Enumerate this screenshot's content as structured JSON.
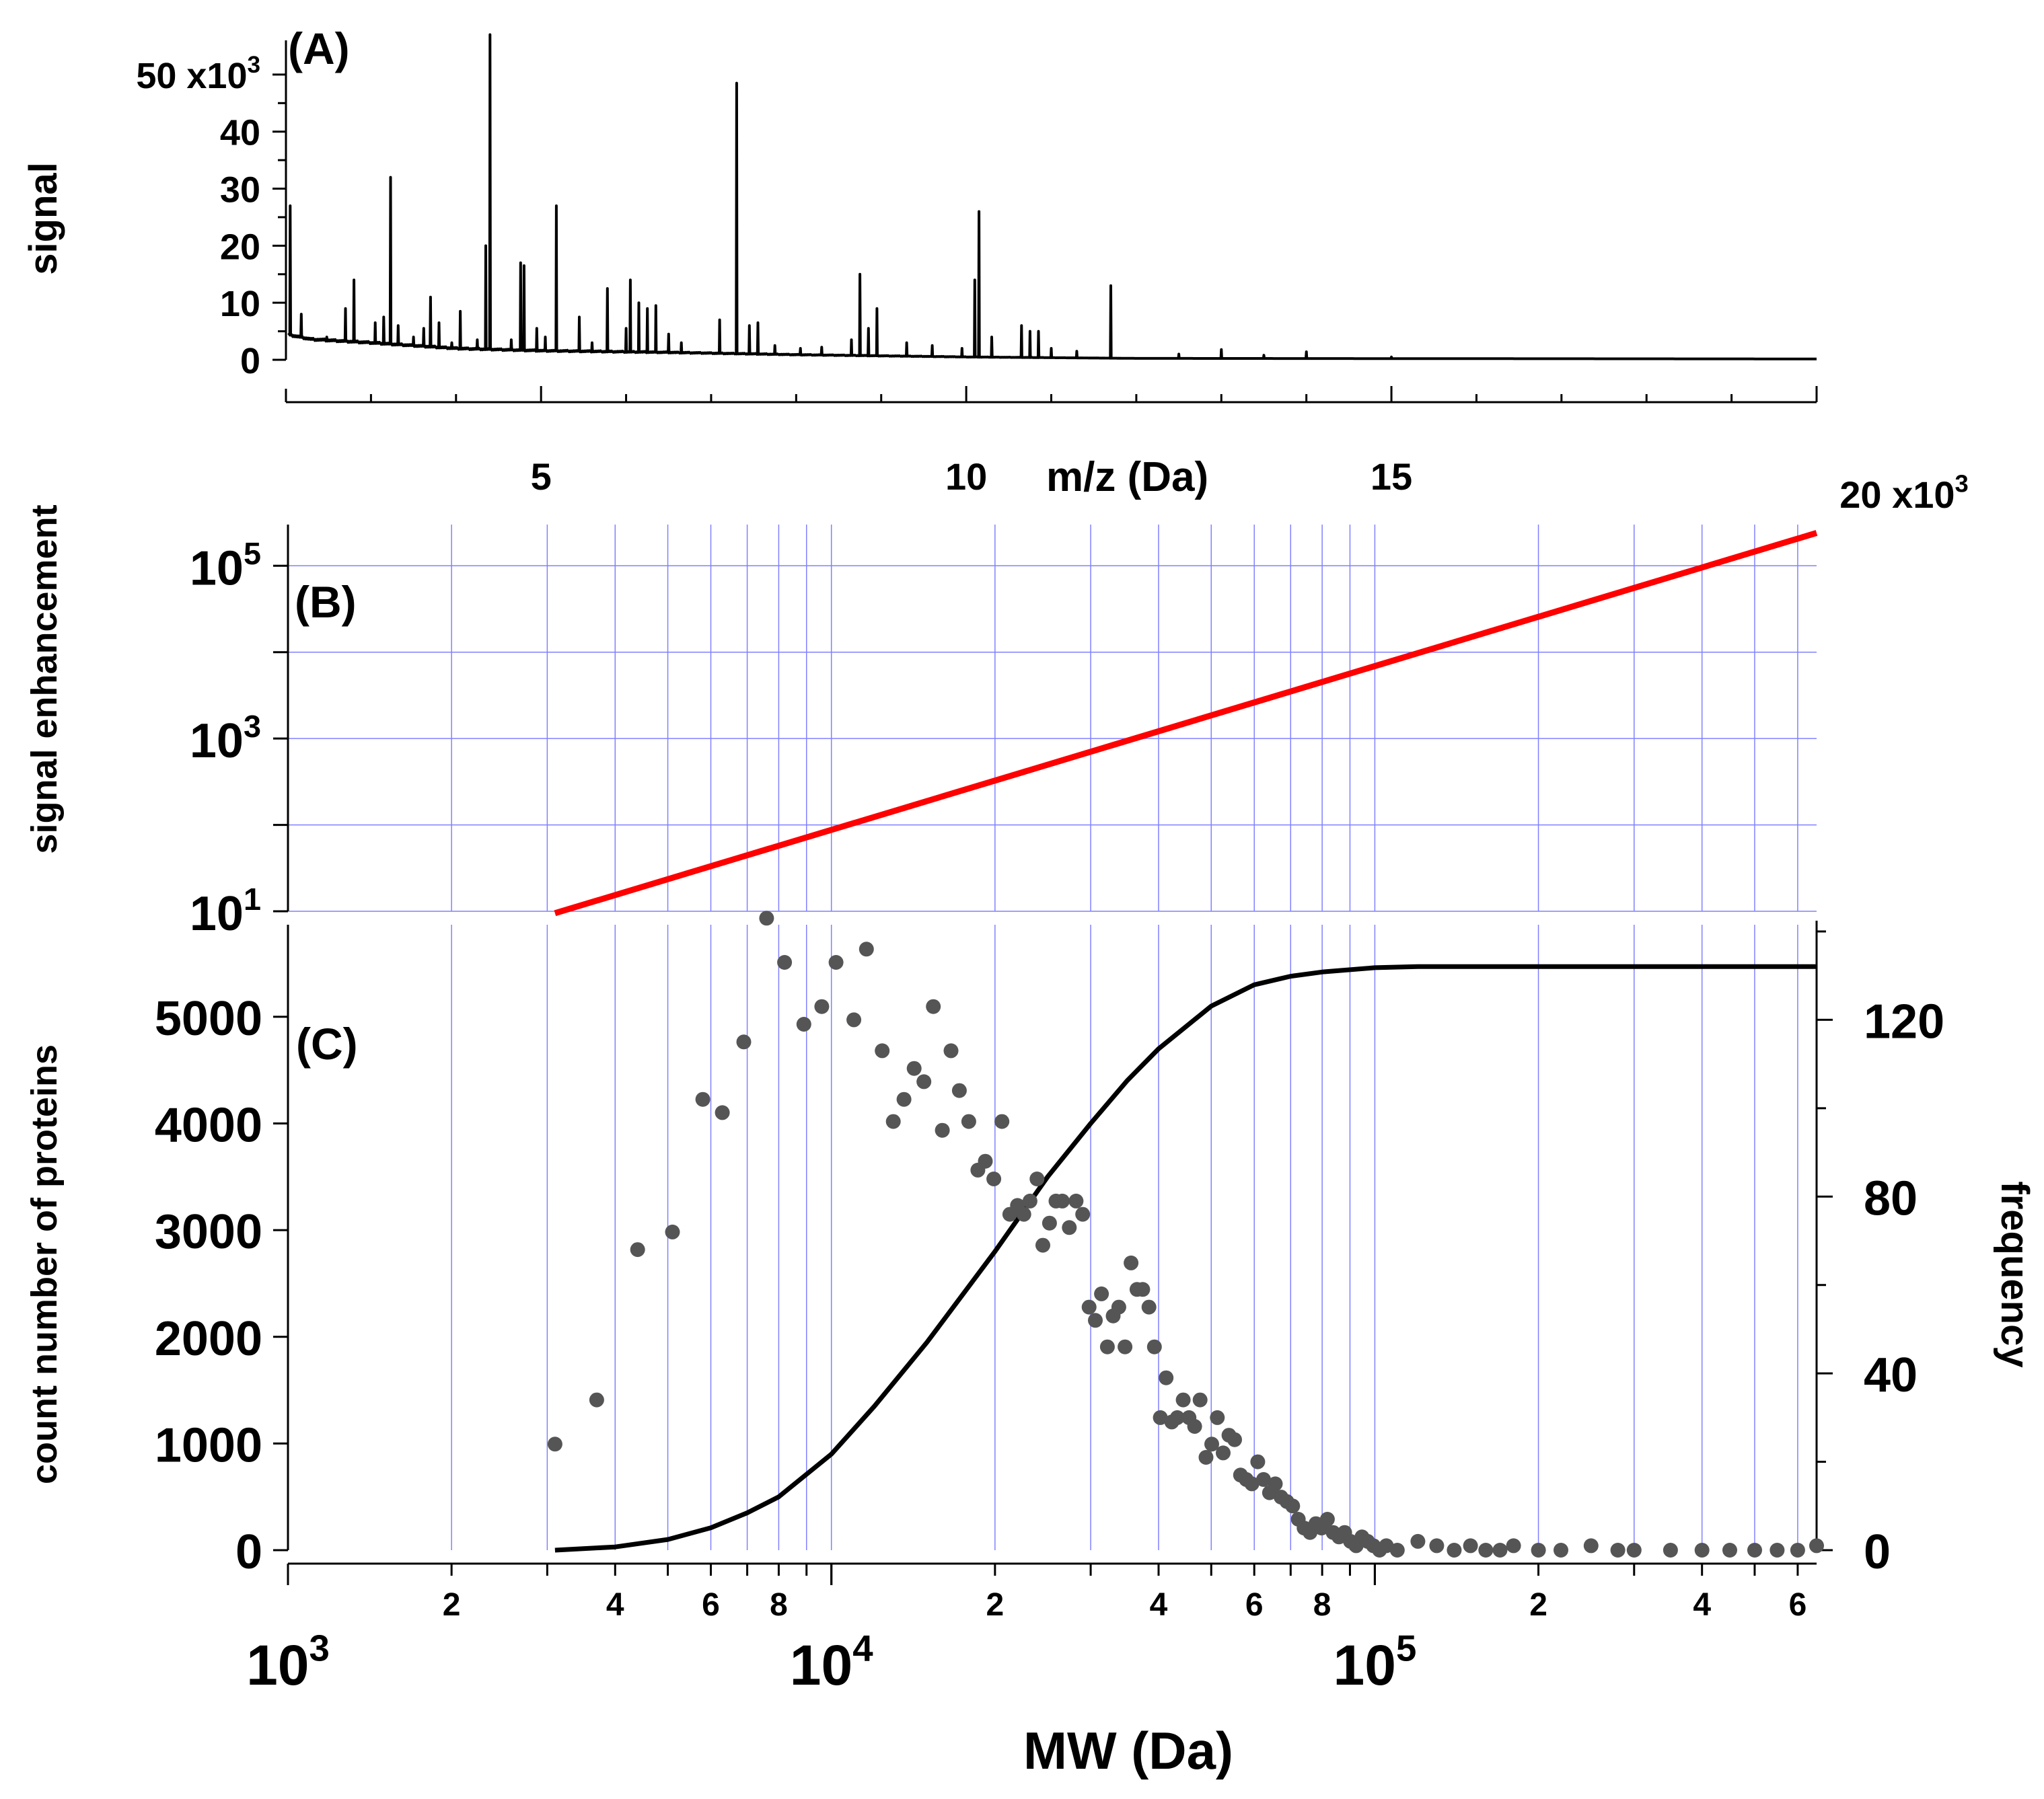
{
  "chart_data": [
    {
      "id": "A",
      "type": "line",
      "panel_label": "(A)",
      "xlabel": "m/z (Da)",
      "ylabel": "signal",
      "xlim": [
        2000,
        20000
      ],
      "ylim": [
        0,
        56000
      ],
      "x_ticks": [
        5000,
        10000,
        15000,
        20000
      ],
      "x_tick_labels": [
        "5",
        "10",
        "15",
        "20 x10"
      ],
      "x_tick_exp": [
        "",
        "",
        "",
        "3"
      ],
      "y_ticks": [
        0,
        10000,
        20000,
        30000,
        40000,
        50000
      ],
      "y_tick_labels": [
        "0",
        "10",
        "20",
        "30",
        "40",
        "50 x10"
      ],
      "y_tick_exp": [
        "",
        "",
        "",
        "",
        "",
        "3"
      ],
      "baseline": [
        [
          2000,
          4500
        ],
        [
          2300,
          3600
        ],
        [
          3000,
          3000
        ],
        [
          4000,
          2000
        ],
        [
          5000,
          1600
        ],
        [
          6500,
          1300
        ],
        [
          8000,
          900
        ],
        [
          10000,
          500
        ],
        [
          12000,
          250
        ],
        [
          20000,
          150
        ]
      ],
      "peaks": [
        [
          2050,
          27000
        ],
        [
          2180,
          8000
        ],
        [
          2480,
          4000
        ],
        [
          2700,
          9000
        ],
        [
          2800,
          14000
        ],
        [
          3050,
          6500
        ],
        [
          3150,
          7500
        ],
        [
          3230,
          32000
        ],
        [
          3320,
          6000
        ],
        [
          3500,
          4000
        ],
        [
          3620,
          5500
        ],
        [
          3700,
          11000
        ],
        [
          3800,
          6500
        ],
        [
          3950,
          3000
        ],
        [
          4050,
          8500
        ],
        [
          4250,
          3500
        ],
        [
          4350,
          20000
        ],
        [
          4400,
          57000
        ],
        [
          4650,
          3500
        ],
        [
          4760,
          17000
        ],
        [
          4800,
          16500
        ],
        [
          4950,
          5500
        ],
        [
          5050,
          4000
        ],
        [
          5180,
          27000
        ],
        [
          5450,
          7500
        ],
        [
          5600,
          3000
        ],
        [
          5780,
          12500
        ],
        [
          6000,
          5500
        ],
        [
          6050,
          14000
        ],
        [
          6150,
          10000
        ],
        [
          6250,
          9000
        ],
        [
          6350,
          9500
        ],
        [
          6500,
          4500
        ],
        [
          6650,
          3000
        ],
        [
          7100,
          7000
        ],
        [
          7300,
          48500
        ],
        [
          7450,
          6000
        ],
        [
          7550,
          6500
        ],
        [
          7750,
          2500
        ],
        [
          8050,
          2000
        ],
        [
          8300,
          2200
        ],
        [
          8650,
          3500
        ],
        [
          8750,
          15000
        ],
        [
          8850,
          5500
        ],
        [
          8950,
          9000
        ],
        [
          9300,
          3000
        ],
        [
          9600,
          2500
        ],
        [
          9950,
          2000
        ],
        [
          10100,
          14000
        ],
        [
          10150,
          26000
        ],
        [
          10300,
          4000
        ],
        [
          10650,
          6000
        ],
        [
          10750,
          5000
        ],
        [
          10850,
          5000
        ],
        [
          11000,
          2000
        ],
        [
          11300,
          1500
        ],
        [
          11700,
          13000
        ],
        [
          12500,
          1000
        ],
        [
          13000,
          1800
        ],
        [
          13500,
          800
        ],
        [
          14000,
          1400
        ],
        [
          15000,
          500
        ]
      ]
    },
    {
      "id": "B",
      "type": "line",
      "panel_label": "(B)",
      "ylabel": "signal enhancement",
      "xlim": [
        1000,
        650000
      ],
      "ylim": [
        10,
        300000
      ],
      "y_scale": "log",
      "y_ticks": [
        10,
        1000,
        100000
      ],
      "y_tick_base": [
        "10",
        "10",
        "10"
      ],
      "y_tick_exp": [
        "1",
        "3",
        "5"
      ],
      "series": [
        {
          "name": "signal enhancement",
          "color": "#ff0000",
          "x": [
            3100,
            650000
          ],
          "y": [
            9.5,
            240000
          ]
        }
      ],
      "grid": "on"
    },
    {
      "id": "C",
      "type": "scatter",
      "panel_label": "(C)",
      "xlabel": "MW (Da)",
      "ylabel_left": "count number of proteins",
      "ylabel_right": "frequency",
      "xlim": [
        1000,
        650000
      ],
      "x_scale": "log",
      "ylim_left": [
        0,
        5800
      ],
      "ylim_right": [
        0,
        140
      ],
      "y_ticks_left": [
        0,
        1000,
        2000,
        3000,
        4000,
        5000
      ],
      "y_tick_labels_left": [
        "0",
        "1000",
        "2000",
        "3000",
        "4000",
        "5000"
      ],
      "y_ticks_right": [
        0,
        40,
        80,
        120
      ],
      "y_tick_labels_right": [
        "0",
        "40",
        "80",
        "120"
      ],
      "x_major_ticks": [
        1000,
        10000,
        100000
      ],
      "x_major_labels": [
        "10",
        "10",
        "10"
      ],
      "x_major_exp": [
        "3",
        "4",
        "5"
      ],
      "x_minor_ticks": [
        2000,
        4000,
        6000,
        8000,
        20000,
        40000,
        60000,
        80000,
        200000,
        400000,
        600000
      ],
      "x_minor_labels": [
        "2",
        "4",
        "6",
        "8",
        "2",
        "4",
        "6",
        "8",
        "2",
        "4",
        "6"
      ],
      "grid": "on",
      "cumulative_count": {
        "name": "count number of proteins",
        "color": "#000000",
        "x": [
          3100,
          4000,
          5000,
          6000,
          7000,
          8000,
          10000,
          12000,
          15000,
          20000,
          25000,
          30000,
          35000,
          40000,
          50000,
          60000,
          70000,
          80000,
          100000,
          120000,
          650000
        ],
        "y": [
          0,
          30,
          100,
          210,
          350,
          500,
          900,
          1350,
          1950,
          2800,
          3500,
          4000,
          4400,
          4700,
          5100,
          5300,
          5380,
          5420,
          5460,
          5470,
          5470
        ]
      },
      "frequency_points": {
        "name": "frequency",
        "color": "#555555",
        "x": [
          3100,
          3700,
          4400,
          5100,
          5800,
          6300,
          6900,
          7600,
          8200,
          8900,
          9600,
          10200,
          11000,
          11600,
          12400,
          13000,
          13600,
          14200,
          14800,
          15400,
          16000,
          16600,
          17200,
          17900,
          18600,
          19200,
          19900,
          20600,
          21300,
          22000,
          22600,
          23200,
          23900,
          24500,
          25200,
          25900,
          26600,
          27400,
          28200,
          29000,
          29800,
          30600,
          31400,
          32200,
          33000,
          33800,
          34700,
          35600,
          36500,
          37400,
          38400,
          39300,
          40300,
          41300,
          42300,
          43300,
          44400,
          45500,
          46600,
          47700,
          48900,
          50100,
          51300,
          52600,
          53900,
          55200,
          56600,
          58000,
          59400,
          60900,
          62400,
          64000,
          65600,
          67200,
          68900,
          70600,
          72300,
          74100,
          76000,
          77900,
          79800,
          81800,
          83800,
          85900,
          88000,
          90200,
          92400,
          94700,
          97000,
          99400,
          102000,
          105000,
          110000,
          120000,
          130000,
          140000,
          150000,
          160000,
          170000,
          180000,
          200000,
          220000,
          250000,
          280000,
          300000,
          350000,
          400000,
          450000,
          500000,
          550000,
          600000,
          650000
        ],
        "y": [
          24,
          34,
          68,
          72,
          102,
          99,
          115,
          143,
          133,
          119,
          123,
          133,
          120,
          136,
          113,
          97,
          102,
          109,
          106,
          123,
          95,
          113,
          104,
          97,
          86,
          88,
          84,
          97,
          76,
          78,
          76,
          79,
          84,
          69,
          74,
          79,
          79,
          73,
          79,
          76,
          55,
          52,
          58,
          46,
          53,
          55,
          46,
          65,
          59,
          59,
          55,
          46,
          30,
          39,
          29,
          30,
          34,
          30,
          28,
          34,
          21,
          24,
          30,
          22,
          26,
          25,
          17,
          16,
          15,
          20,
          16,
          13,
          15,
          12,
          11,
          10,
          7,
          5,
          4,
          6,
          5,
          7,
          4,
          3,
          4,
          2,
          1,
          3,
          2,
          1,
          0,
          1,
          0,
          2,
          1,
          0,
          1,
          0,
          0,
          1,
          0,
          0,
          1,
          0,
          0,
          0,
          0,
          0,
          0,
          0,
          0,
          1
        ]
      }
    }
  ],
  "panel_labels": {
    "a": "(A)",
    "b": "(B)",
    "c": "(C)"
  },
  "labels": {
    "a_xlabel": "m/z (Da)",
    "a_ylabel": "signal",
    "b_ylabel": "signal enhancement",
    "c_ylabel_left": "count number of proteins",
    "c_ylabel_right": "frequency",
    "c_xlabel": "MW (Da)"
  },
  "colors": {
    "grid": "#8080ff",
    "enhancement_line": "#ff0000",
    "cumulative_line": "#000000",
    "frequency_points": "#555555",
    "spectrum_line": "#000000"
  }
}
